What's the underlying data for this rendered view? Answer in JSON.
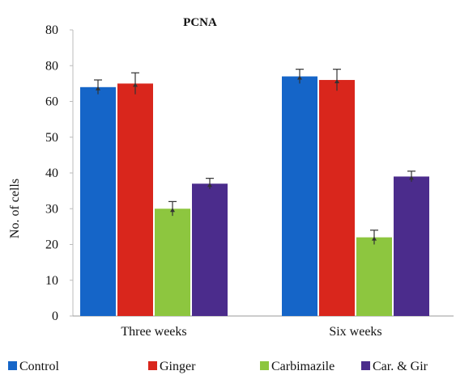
{
  "chart_data": {
    "type": "bar",
    "title": "PCNA",
    "xlabel": "",
    "ylabel": "No. of cells",
    "y_tick_labels": [
      "0",
      "10",
      "20",
      "30",
      "40",
      "50",
      "60",
      "70",
      "80"
    ],
    "y_tick_labels_printed": [
      "0",
      "10",
      "20",
      "30",
      "40",
      "50",
      "60",
      "80",
      "80"
    ],
    "ylim": [
      0,
      80
    ],
    "categories": [
      "Three weeks",
      "Six weeks"
    ],
    "series": [
      {
        "name": "Control",
        "color": "#1565c8",
        "values": [
          64,
          67
        ],
        "errors": [
          2,
          2
        ]
      },
      {
        "name": "Ginger",
        "color": "#d9261c",
        "values": [
          65,
          66
        ],
        "errors": [
          3,
          3
        ]
      },
      {
        "name": "Carbimazile",
        "color": "#8dc63f",
        "values": [
          30,
          22
        ],
        "errors": [
          2,
          2
        ]
      },
      {
        "name": "Car. & Gir",
        "color": "#4b2c8c",
        "values": [
          37,
          39
        ],
        "errors": [
          1.5,
          1.5
        ]
      }
    ],
    "legend_position": "bottom",
    "grid": false
  }
}
